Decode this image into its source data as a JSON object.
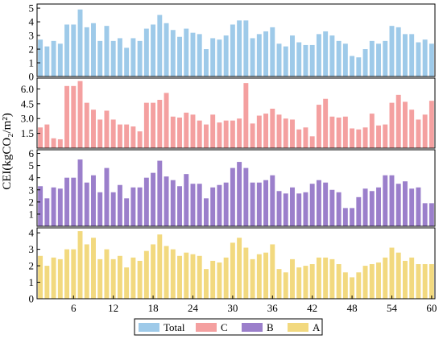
{
  "chart_data": {
    "type": "bar",
    "ylabel": "CEI(kgCO₂/m²)",
    "x": [
      1,
      2,
      3,
      4,
      5,
      6,
      7,
      8,
      9,
      10,
      11,
      12,
      13,
      14,
      15,
      16,
      17,
      18,
      19,
      20,
      21,
      22,
      23,
      24,
      25,
      26,
      27,
      28,
      29,
      30,
      31,
      32,
      33,
      34,
      35,
      36,
      37,
      38,
      39,
      40,
      41,
      42,
      43,
      44,
      45,
      46,
      47,
      48,
      49,
      50,
      51,
      52,
      53,
      54,
      55,
      56,
      57,
      58,
      59,
      60
    ],
    "xticks": [
      "6",
      "12",
      "18",
      "24",
      "30",
      "36",
      "42",
      "48",
      "54",
      "60"
    ],
    "legend": [
      "Total",
      "C",
      "B",
      "A"
    ],
    "panels": [
      {
        "name": "Total",
        "color": "#9ecae9",
        "ylim": [
          0,
          5.3
        ],
        "yticks": [
          "0",
          "1",
          "2",
          "3",
          "4",
          "5"
        ],
        "values": [
          2.7,
          2.2,
          2.6,
          2.4,
          3.8,
          3.8,
          4.9,
          3.6,
          3.9,
          2.6,
          3.7,
          2.6,
          2.8,
          2.1,
          2.8,
          2.6,
          3.5,
          3.8,
          4.5,
          3.9,
          3.4,
          2.9,
          3.5,
          3.2,
          3.1,
          2.0,
          2.8,
          2.7,
          3.0,
          3.8,
          4.1,
          4.1,
          2.8,
          3.1,
          3.3,
          3.6,
          2.4,
          2.2,
          3.0,
          2.5,
          2.3,
          2.3,
          3.1,
          3.3,
          3.0,
          2.6,
          2.4,
          1.5,
          1.4,
          2.0,
          2.6,
          2.4,
          2.6,
          3.7,
          3.6,
          3.1,
          3.1,
          2.5,
          2.7,
          2.4
        ]
      },
      {
        "name": "C",
        "color": "#f4a0a0",
        "ylim": [
          0,
          7.1
        ],
        "yticks": [
          "1.5",
          "3.0",
          "4.5",
          "6.0"
        ],
        "values": [
          2.1,
          2.4,
          1.0,
          0.9,
          6.3,
          6.3,
          6.8,
          4.6,
          3.9,
          2.9,
          3.8,
          2.9,
          2.4,
          2.4,
          2.2,
          1.7,
          4.6,
          4.6,
          4.9,
          5.6,
          3.2,
          3.1,
          3.6,
          3.4,
          2.8,
          2.4,
          3.4,
          2.6,
          2.8,
          2.8,
          3.0,
          6.6,
          2.5,
          3.3,
          3.5,
          4.0,
          3.4,
          3.0,
          2.9,
          1.9,
          2.1,
          1.2,
          4.4,
          5.0,
          3.2,
          3.1,
          3.2,
          2.0,
          1.9,
          2.1,
          3.5,
          2.3,
          2.4,
          4.6,
          5.4,
          4.7,
          3.9,
          2.9,
          3.4,
          4.8
        ]
      },
      {
        "name": "B",
        "color": "#9b7fcb",
        "ylim": [
          0,
          6.3
        ],
        "yticks": [
          "1",
          "2",
          "3",
          "4",
          "5",
          "6"
        ],
        "values": [
          3.3,
          2.3,
          3.2,
          3.1,
          4.0,
          4.0,
          5.5,
          3.6,
          4.2,
          2.8,
          4.8,
          2.8,
          3.4,
          2.3,
          3.2,
          3.2,
          4.0,
          4.4,
          5.4,
          4.1,
          3.8,
          3.3,
          4.3,
          3.5,
          3.5,
          2.3,
          3.2,
          3.4,
          3.6,
          4.8,
          5.3,
          4.8,
          3.6,
          3.6,
          3.8,
          4.2,
          2.9,
          2.7,
          3.2,
          2.7,
          2.8,
          3.5,
          3.8,
          3.6,
          3.0,
          2.8,
          1.5,
          1.5,
          2.4,
          3.1,
          2.9,
          3.2,
          4.2,
          4.2,
          3.5,
          3.7,
          3.1,
          3.2,
          1.9,
          1.9
        ]
      },
      {
        "name": "A",
        "color": "#f2d97f",
        "ylim": [
          0,
          4.3
        ],
        "yticks": [
          "0",
          "1",
          "2",
          "3",
          "4"
        ],
        "values": [
          2.6,
          2.0,
          2.5,
          2.4,
          3.0,
          3.0,
          4.1,
          3.3,
          3.7,
          2.4,
          3.0,
          2.4,
          2.6,
          1.9,
          2.5,
          2.3,
          2.9,
          3.3,
          3.9,
          3.2,
          3.0,
          2.6,
          2.8,
          2.7,
          2.6,
          1.8,
          2.3,
          2.2,
          2.5,
          3.4,
          3.7,
          3.1,
          2.4,
          2.7,
          2.8,
          3.3,
          1.8,
          1.6,
          2.4,
          1.9,
          2.0,
          2.1,
          2.5,
          2.5,
          2.4,
          2.1,
          1.6,
          1.3,
          1.6,
          2.0,
          2.1,
          2.2,
          2.5,
          3.1,
          2.8,
          2.3,
          2.5,
          2.1,
          2.1,
          2.1
        ]
      }
    ]
  }
}
